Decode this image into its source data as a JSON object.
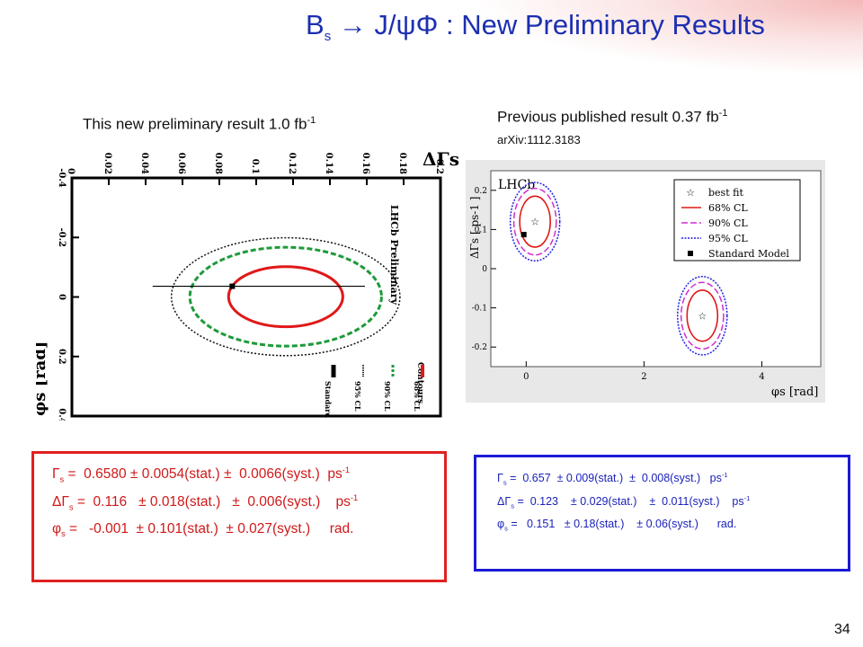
{
  "slide": {
    "title_main": "B",
    "title_sub": "s",
    "title_rest": " → J/ψΦ : New Preliminary Results",
    "page_number": "34"
  },
  "left_caption": {
    "text": "This new preliminary result 1.0 fb",
    "sup": "-1"
  },
  "right_caption": {
    "text": "Previous published result 0.37 fb",
    "sup": "-1",
    "ref": "arXiv:1112.3183"
  },
  "chart_data": [
    {
      "type": "scatter",
      "panel": "new-preliminary",
      "xlabel": "φs [rad]",
      "ylabel": "ΔΓs [ps-1]",
      "xlim": [
        -0.4,
        0.4
      ],
      "ylim": [
        0,
        0.2
      ],
      "x_ticks": [
        "-0.4",
        "-0.2",
        "0",
        "0.2",
        "0.4"
      ],
      "y_ticks": [
        "0",
        "0.02",
        "0.04",
        "0.06",
        "0.08",
        "0.1",
        "0.12",
        "0.14",
        "0.16",
        "0.18",
        "0.2"
      ],
      "watermark": "LHCb Preliminary",
      "legend_title": "Contours",
      "legend": [
        "68% CL",
        "90% CL",
        "95% CL",
        "Standard Model"
      ],
      "series": [
        {
          "name": "68% CL",
          "center": [
            -0.001,
            0.116
          ],
          "half_width": [
            0.101,
            0.031
          ],
          "color": "#e01818",
          "style": "solid"
        },
        {
          "name": "90% CL",
          "center": [
            -0.001,
            0.116
          ],
          "half_width": [
            0.166,
            0.052
          ],
          "color": "#1e9a3a",
          "style": "dashed"
        },
        {
          "name": "95% CL",
          "center": [
            -0.001,
            0.116
          ],
          "half_width": [
            0.198,
            0.062
          ],
          "color": "#111111",
          "style": "dotted"
        }
      ],
      "standard_model": {
        "x": -0.036,
        "y": 0.087,
        "x_err": 0.06
      }
    },
    {
      "type": "scatter",
      "panel": "previous-published",
      "label": "LHCb",
      "xlabel": "φs [rad]",
      "ylabel": "ΔΓs [ ps-1 ]",
      "xlim": [
        -0.6,
        5.0
      ],
      "ylim": [
        -0.25,
        0.25
      ],
      "x_ticks": [
        "0",
        "2",
        "4"
      ],
      "y_ticks": [
        "-0.2",
        "-0.1",
        "0",
        "0.1",
        "0.2"
      ],
      "legend": [
        "best fit",
        "68% CL",
        "90% CL",
        "95% CL",
        "Standard Model"
      ],
      "best_fit": [
        {
          "x": 0.15,
          "y": 0.12
        },
        {
          "x": 2.99,
          "y": -0.12
        }
      ],
      "standard_model": {
        "x": -0.04,
        "y": 0.087
      },
      "contour_colors": {
        "68": "#e01818",
        "90": "#d030d0",
        "95": "#2020e0"
      }
    }
  ],
  "results_new": {
    "lines": [
      {
        "sym": "Γ",
        "sub": "s",
        "text": " =  0.6580 ± 0.0054(stat.) ±  0.0066(syst.)  ps",
        "sup": "-1"
      },
      {
        "sym": "ΔΓ",
        "sub": "s",
        "text": " =  0.116   ± 0.018(stat.)   ±  0.006(syst.)    ps",
        "sup": "-1"
      },
      {
        "sym": "φ",
        "sub": "s",
        "text": " =   -0.001  ± 0.101(stat.)  ± 0.027(syst.)     rad.",
        "sup": ""
      }
    ]
  },
  "results_prev": {
    "lines": [
      {
        "sym": "Γ",
        "sub": "s",
        "text": " =  0.657  ± 0.009(stat.)  ±  0.008(syst.)   ps",
        "sup": "-1"
      },
      {
        "sym": "ΔΓ",
        "sub": "s",
        "text": " =  0.123    ± 0.029(stat.)    ±  0.011(syst.)    ps",
        "sup": "-1"
      },
      {
        "sym": "φ",
        "sub": "s",
        "text": " =   0.151   ± 0.18(stat.)    ± 0.06(syst.)      rad.",
        "sup": ""
      }
    ]
  }
}
